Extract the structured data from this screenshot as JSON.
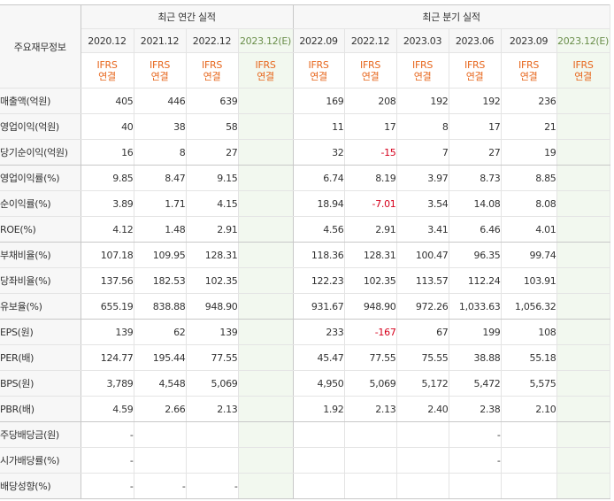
{
  "table": {
    "corner_label": "주요재무정보",
    "group_annual": "최근 연간 실적",
    "group_quarter": "최근 분기 실적",
    "annual_periods": [
      "2020.12",
      "2021.12",
      "2022.12",
      "2023.12(E)"
    ],
    "quarter_periods": [
      "2022.09",
      "2022.12",
      "2023.03",
      "2023.06",
      "2023.09",
      "2023.12(E)"
    ],
    "basis_line1": "IFRS",
    "basis_line2": "연결",
    "rows": [
      {
        "label": "매출액(억원)",
        "annual": [
          "405",
          "446",
          "639",
          ""
        ],
        "quarter": [
          "169",
          "208",
          "192",
          "192",
          "236",
          ""
        ]
      },
      {
        "label": "영업이익(억원)",
        "annual": [
          "40",
          "38",
          "58",
          ""
        ],
        "quarter": [
          "11",
          "17",
          "8",
          "17",
          "21",
          ""
        ]
      },
      {
        "label": "당기순이익(억원)",
        "annual": [
          "16",
          "8",
          "27",
          ""
        ],
        "quarter": [
          "32",
          "-15",
          "7",
          "27",
          "19",
          ""
        ]
      },
      {
        "label": "영업이익률(%)",
        "annual": [
          "9.85",
          "8.47",
          "9.15",
          ""
        ],
        "quarter": [
          "6.74",
          "8.19",
          "3.97",
          "8.73",
          "8.85",
          ""
        ]
      },
      {
        "label": "순이익률(%)",
        "annual": [
          "3.89",
          "1.71",
          "4.15",
          ""
        ],
        "quarter": [
          "18.94",
          "-7.01",
          "3.54",
          "14.08",
          "8.08",
          ""
        ]
      },
      {
        "label": "ROE(%)",
        "annual": [
          "4.12",
          "1.48",
          "2.91",
          ""
        ],
        "quarter": [
          "4.56",
          "2.91",
          "3.41",
          "6.46",
          "4.01",
          ""
        ]
      },
      {
        "label": "부채비율(%)",
        "annual": [
          "107.18",
          "109.95",
          "128.31",
          ""
        ],
        "quarter": [
          "118.36",
          "128.31",
          "100.47",
          "96.35",
          "99.74",
          ""
        ]
      },
      {
        "label": "당좌비율(%)",
        "annual": [
          "137.56",
          "182.53",
          "102.35",
          ""
        ],
        "quarter": [
          "122.23",
          "102.35",
          "113.57",
          "112.24",
          "103.91",
          ""
        ]
      },
      {
        "label": "유보율(%)",
        "annual": [
          "655.19",
          "838.88",
          "948.90",
          ""
        ],
        "quarter": [
          "931.67",
          "948.90",
          "972.26",
          "1,033.63",
          "1,056.32",
          ""
        ]
      },
      {
        "label": "EPS(원)",
        "annual": [
          "139",
          "62",
          "139",
          ""
        ],
        "quarter": [
          "233",
          "-167",
          "67",
          "199",
          "108",
          ""
        ]
      },
      {
        "label": "PER(배)",
        "annual": [
          "124.77",
          "195.44",
          "77.55",
          ""
        ],
        "quarter": [
          "45.47",
          "77.55",
          "75.55",
          "38.88",
          "55.18",
          ""
        ]
      },
      {
        "label": "BPS(원)",
        "annual": [
          "3,789",
          "4,548",
          "5,069",
          ""
        ],
        "quarter": [
          "4,950",
          "5,069",
          "5,172",
          "5,472",
          "5,575",
          ""
        ]
      },
      {
        "label": "PBR(배)",
        "annual": [
          "4.59",
          "2.66",
          "2.13",
          ""
        ],
        "quarter": [
          "1.92",
          "2.13",
          "2.40",
          "2.38",
          "2.10",
          ""
        ]
      },
      {
        "label": "주당배당금(원)",
        "annual": [
          "-",
          "",
          "",
          ""
        ],
        "quarter": [
          "",
          "",
          "",
          "-",
          "",
          ""
        ]
      },
      {
        "label": "시가배당률(%)",
        "annual": [
          "-",
          "",
          "",
          ""
        ],
        "quarter": [
          "",
          "",
          "",
          "-",
          "",
          ""
        ]
      },
      {
        "label": "배당성향(%)",
        "annual": [
          "-",
          "-",
          "-",
          ""
        ],
        "quarter": [
          "",
          "",
          "",
          "",
          "",
          ""
        ]
      }
    ],
    "colors": {
      "negative": "#d6001c",
      "basis": "#e7671e",
      "estimate_bg": "#f2f8ef"
    }
  }
}
